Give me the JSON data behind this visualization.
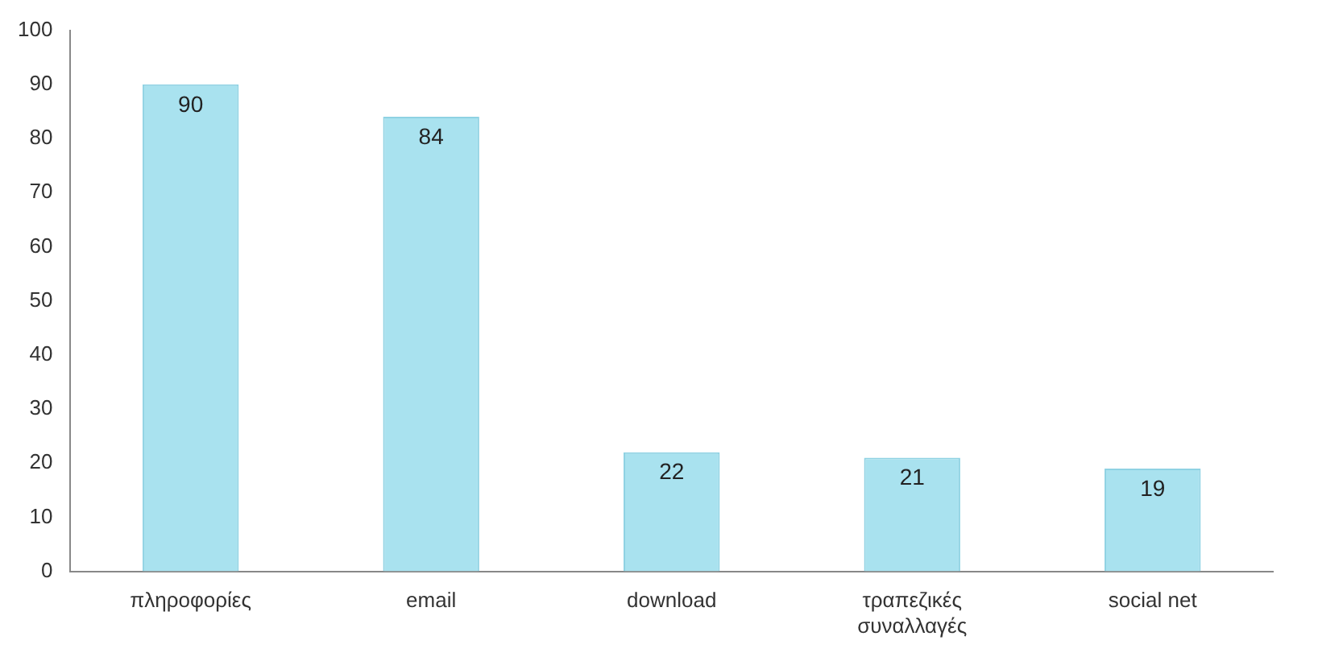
{
  "chart_data": {
    "type": "bar",
    "categories": [
      "πληροφορίες",
      "email",
      "download",
      "τραπεζικές συναλλαγές",
      "social net"
    ],
    "values": [
      90,
      84,
      22,
      21,
      19
    ],
    "color": "#a9e2ef",
    "ylim": [
      0,
      100
    ],
    "yticks": [
      0,
      10,
      20,
      30,
      40,
      50,
      60,
      70,
      80,
      90,
      100
    ],
    "grid": false,
    "data_labels": true
  }
}
